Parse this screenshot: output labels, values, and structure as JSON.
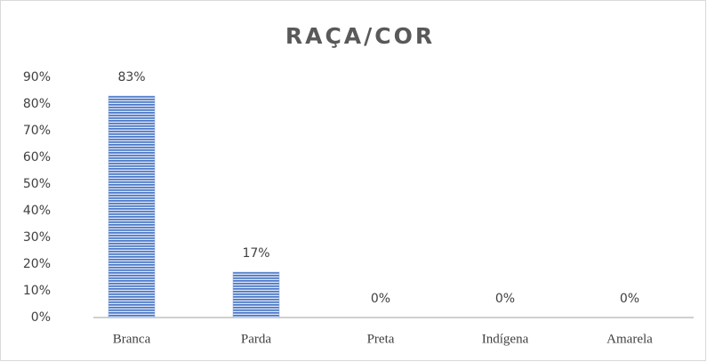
{
  "chart_data": {
    "type": "bar",
    "title": "RAÇA/COR",
    "categories": [
      "Branca",
      "Parda",
      "Preta",
      "Indígena",
      "Amarela"
    ],
    "values": [
      83,
      17,
      0,
      0,
      0
    ],
    "value_labels": [
      "83%",
      "17%",
      "0%",
      "0%",
      "0%"
    ],
    "color": "#4472c4",
    "ylim": [
      0,
      90
    ],
    "yticks": [
      {
        "value": 0,
        "label": "0%"
      },
      {
        "value": 10,
        "label": "10%"
      },
      {
        "value": 20,
        "label": "20%"
      },
      {
        "value": 30,
        "label": "30%"
      },
      {
        "value": 40,
        "label": "40%"
      },
      {
        "value": 50,
        "label": "50%"
      },
      {
        "value": 60,
        "label": "60%"
      },
      {
        "value": 70,
        "label": "70%"
      },
      {
        "value": 80,
        "label": "80%"
      },
      {
        "value": 90,
        "label": "90%"
      }
    ],
    "grid": false
  }
}
